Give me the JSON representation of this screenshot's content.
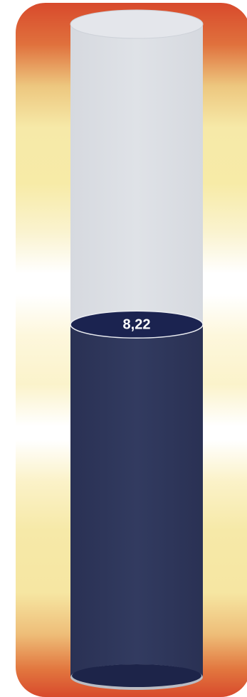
{
  "chart_data": {
    "type": "gauge",
    "value": 8.22,
    "value_label": "8,22",
    "fill_fraction": 0.54
  },
  "colors": {
    "fill": "#2e3659",
    "fill_top": "#1c2450",
    "empty": "#dadde3",
    "empty_top": "#e5e7ec",
    "label": "#ffffff",
    "glow_hot": "#d84a2c",
    "glow_warm": "#f6e9a8"
  }
}
